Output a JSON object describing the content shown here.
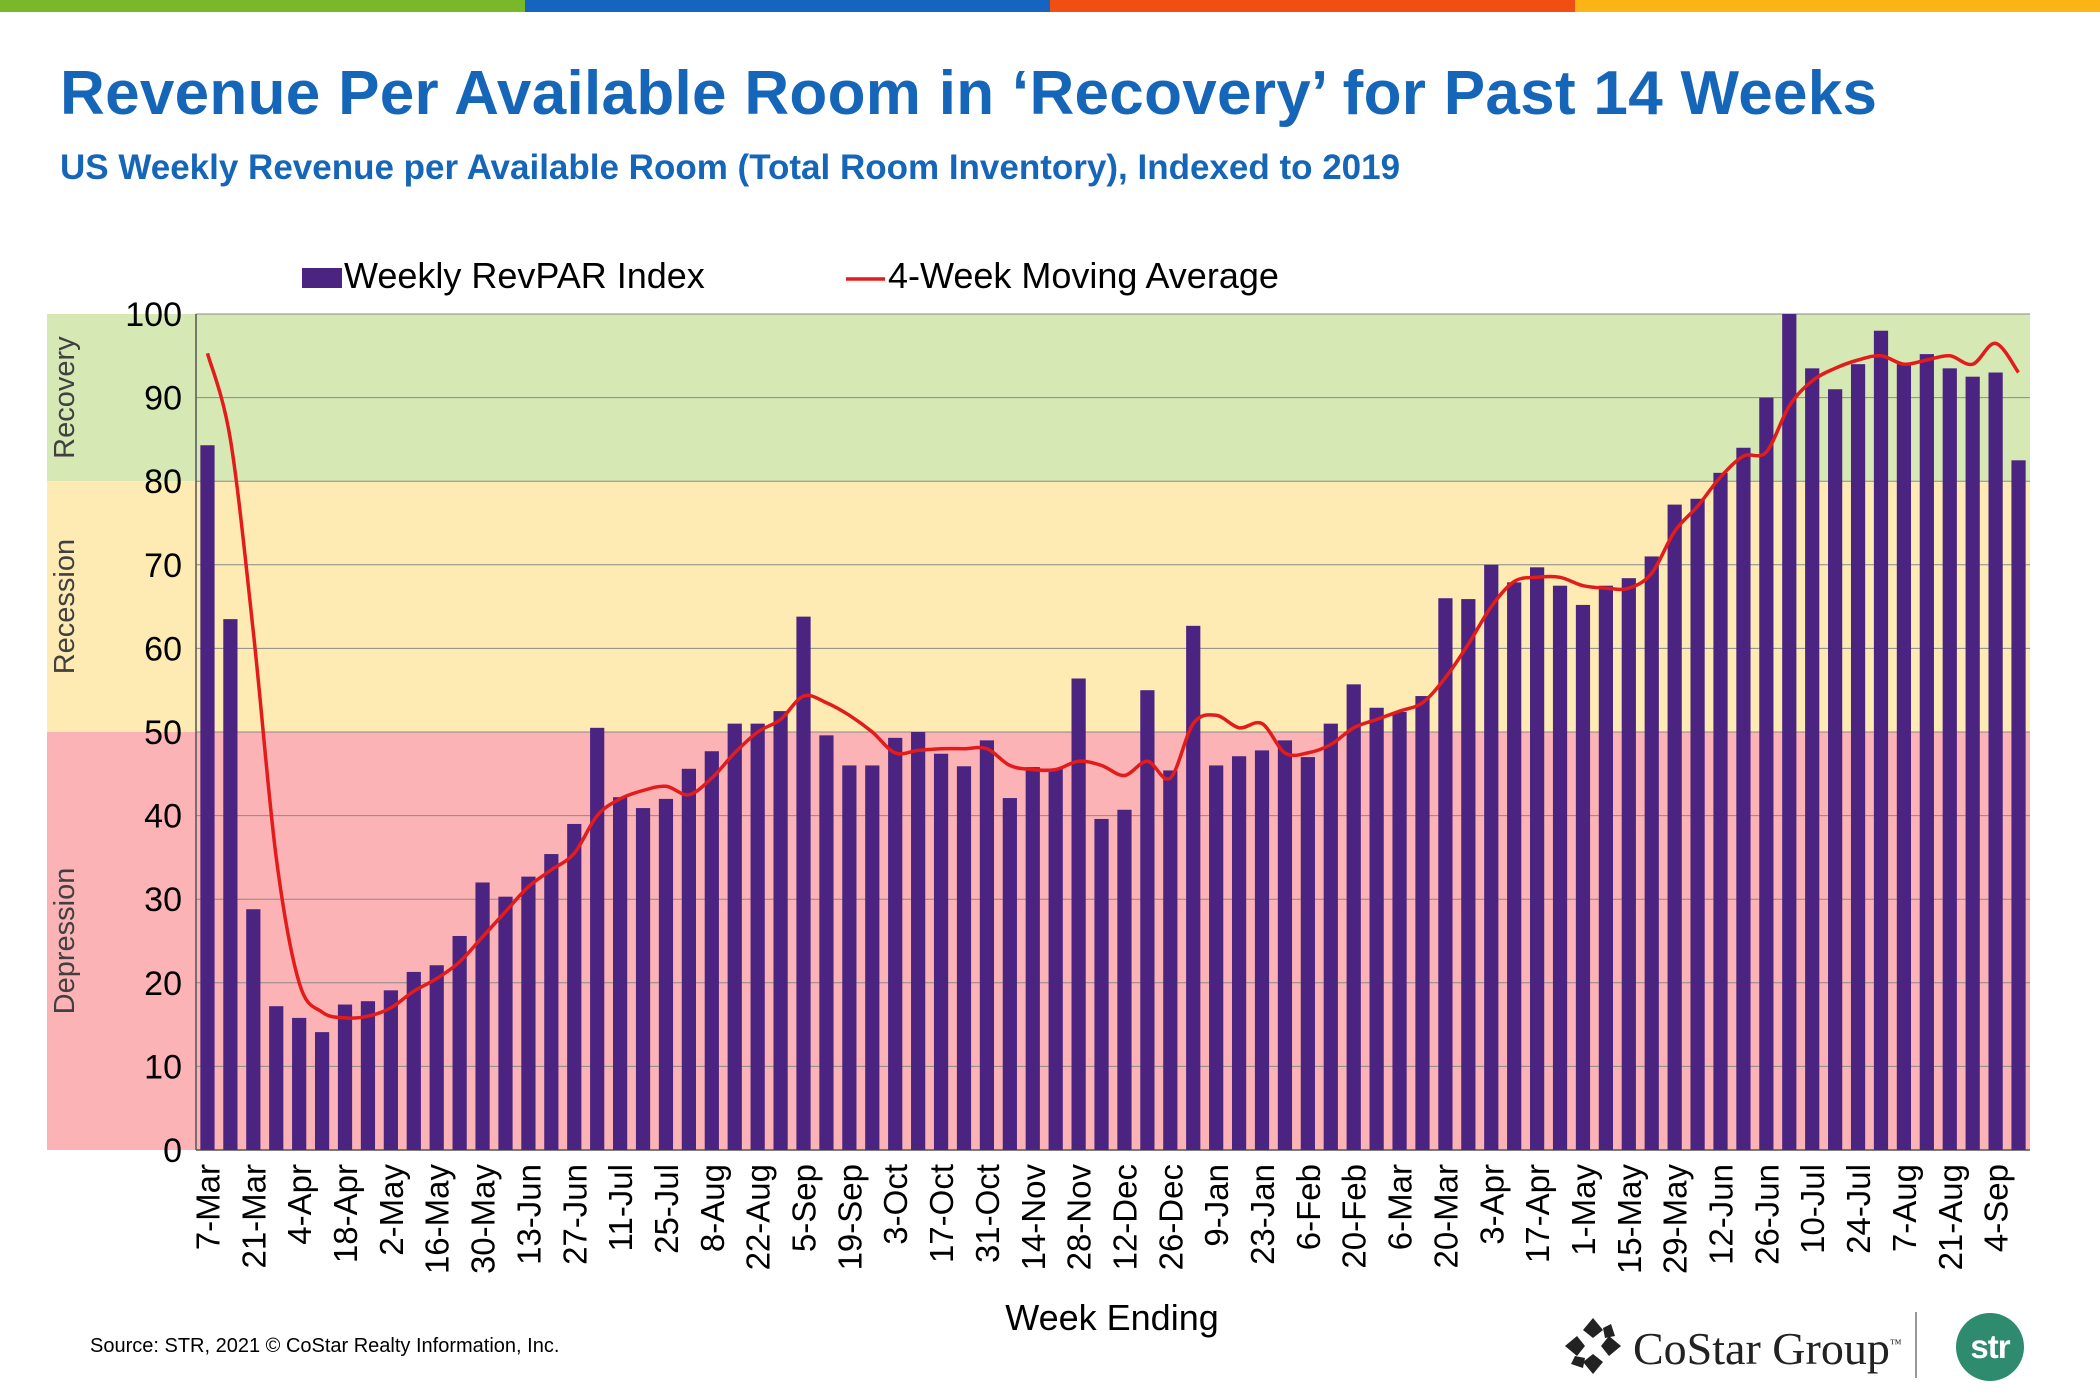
{
  "header": {
    "title": "Revenue Per Available Room in ‘Recovery’ for Past 14 Weeks",
    "subtitle": "US Weekly Revenue per Available Room (Total Room Inventory), Indexed to 2019"
  },
  "colors": {
    "topbar": [
      "#7ab829",
      "#1565c0",
      "#f04e12",
      "#fbb416"
    ],
    "bar": "#4b2381",
    "line": "#e31b1b",
    "recovery_band": "#d6e8b4",
    "recession_band": "#fdebb3",
    "depression_band": "#fcb3b5"
  },
  "chart_data": {
    "type": "bar",
    "xlabel": "Week Ending",
    "ylabel": "",
    "ylim": [
      0,
      100
    ],
    "yticks": [
      0,
      10,
      20,
      30,
      40,
      50,
      60,
      70,
      80,
      90,
      100
    ],
    "grid": true,
    "legend_position": "top",
    "bands": [
      {
        "label": "Recovery",
        "from": 80,
        "to": 100,
        "color": "#d6e8b4"
      },
      {
        "label": "Recession",
        "from": 50,
        "to": 80,
        "color": "#fdebb3"
      },
      {
        "label": "Depression",
        "from": 0,
        "to": 50,
        "color": "#fcb3b5"
      }
    ],
    "categories": [
      "7-Mar",
      "14-Mar",
      "21-Mar",
      "28-Mar",
      "4-Apr",
      "11-Apr",
      "18-Apr",
      "25-Apr",
      "2-May",
      "9-May",
      "16-May",
      "23-May",
      "30-May",
      "6-Jun",
      "13-Jun",
      "20-Jun",
      "27-Jun",
      "4-Jul",
      "11-Jul",
      "18-Jul",
      "25-Jul",
      "1-Aug",
      "8-Aug",
      "15-Aug",
      "22-Aug",
      "29-Aug",
      "5-Sep",
      "12-Sep",
      "19-Sep",
      "26-Sep",
      "3-Oct",
      "10-Oct",
      "17-Oct",
      "24-Oct",
      "31-Oct",
      "7-Nov",
      "14-Nov",
      "21-Nov",
      "28-Nov",
      "5-Dec",
      "12-Dec",
      "19-Dec",
      "26-Dec",
      "2-Jan",
      "9-Jan",
      "16-Jan",
      "23-Jan",
      "30-Jan",
      "6-Feb",
      "13-Feb",
      "20-Feb",
      "27-Feb",
      "6-Mar",
      "13-Mar",
      "20-Mar",
      "27-Mar",
      "3-Apr",
      "10-Apr",
      "17-Apr",
      "24-Apr",
      "1-May",
      "8-May",
      "15-May",
      "22-May",
      "29-May",
      "5-Jun",
      "12-Jun",
      "19-Jun",
      "26-Jun",
      "3-Jul",
      "10-Jul",
      "17-Jul",
      "24-Jul",
      "31-Jul",
      "7-Aug",
      "14-Aug",
      "21-Aug",
      "28-Aug",
      "4-Sep",
      "11-Sep"
    ],
    "tick_labels": [
      "7-Mar",
      "21-Mar",
      "4-Apr",
      "18-Apr",
      "2-May",
      "16-May",
      "30-May",
      "13-Jun",
      "27-Jun",
      "11-Jul",
      "25-Jul",
      "8-Aug",
      "22-Aug",
      "5-Sep",
      "19-Sep",
      "3-Oct",
      "17-Oct",
      "31-Oct",
      "14-Nov",
      "28-Nov",
      "12-Dec",
      "26-Dec",
      "9-Jan",
      "23-Jan",
      "6-Feb",
      "20-Feb",
      "6-Mar",
      "20-Mar",
      "3-Apr",
      "17-Apr",
      "1-May",
      "15-May",
      "29-May",
      "12-Jun",
      "26-Jun",
      "10-Jul",
      "24-Jul",
      "7-Aug",
      "21-Aug",
      "4-Sep"
    ],
    "series": [
      {
        "name": "Weekly RevPAR Index",
        "type": "bar",
        "values": [
          84.3,
          63.5,
          28.8,
          17.2,
          15.8,
          14.1,
          17.4,
          17.8,
          19.1,
          21.3,
          22.1,
          25.6,
          32.0,
          30.3,
          32.7,
          35.4,
          39.0,
          50.5,
          42.2,
          40.9,
          42.0,
          45.6,
          47.7,
          51.0,
          51.0,
          52.5,
          63.8,
          49.6,
          46.0,
          46.0,
          49.3,
          50.0,
          47.4,
          45.9,
          49.0,
          42.1,
          45.8,
          45.6,
          56.4,
          39.6,
          40.7,
          55.0,
          45.4,
          62.7,
          46.0,
          47.1,
          47.8,
          49.0,
          47.0,
          51.0,
          55.7,
          52.9,
          52.4,
          54.3,
          66.0,
          65.9,
          70.0,
          67.9,
          69.7,
          67.5,
          65.2,
          67.5,
          68.4,
          71.0,
          77.2,
          77.9,
          81.0,
          84.0,
          90.0,
          100.0,
          93.5,
          91.0,
          94.0,
          98.0,
          94.0,
          95.2,
          93.5,
          92.5,
          93.0,
          82.5
        ]
      },
      {
        "name": "4-Week Moving Average",
        "type": "line",
        "values": [
          95.3,
          85.0,
          62.0,
          35.0,
          20.0,
          16.5,
          15.8,
          16.0,
          17.0,
          19.0,
          20.5,
          22.5,
          25.5,
          28.5,
          31.5,
          33.5,
          35.5,
          40.0,
          42.0,
          43.0,
          43.5,
          42.5,
          44.5,
          47.5,
          50.0,
          51.5,
          54.3,
          53.5,
          52.0,
          50.0,
          47.5,
          47.8,
          48.0,
          48.0,
          48.0,
          46.0,
          45.5,
          45.5,
          46.5,
          46.0,
          44.8,
          46.5,
          44.5,
          51.0,
          52.0,
          50.5,
          51.0,
          47.5,
          47.5,
          48.5,
          50.5,
          51.5,
          52.5,
          53.5,
          56.5,
          60.5,
          65.0,
          68.0,
          68.5,
          68.5,
          67.5,
          67.2,
          67.2,
          69.0,
          74.0,
          77.0,
          80.5,
          83.0,
          83.5,
          89.0,
          92.0,
          93.5,
          94.5,
          95.0,
          94.0,
          94.5,
          95.0,
          94.0,
          96.5,
          93.0
        ]
      }
    ]
  },
  "source_text": "Source: STR, 2021 © CoStar Realty Information, Inc.",
  "logos": {
    "costar": "CoStar Group",
    "costar_tm": "™",
    "str": "str"
  }
}
